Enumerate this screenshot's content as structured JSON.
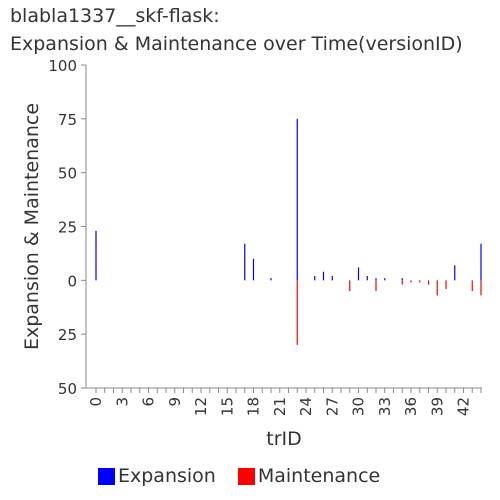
{
  "chart_data": {
    "type": "bar",
    "title_line1": "blabla1337__skf-flask:",
    "title_line2": "Expansion & Maintenance over Time(versionID)",
    "xlabel": "trID",
    "ylabel": "Expansion & Maintenance",
    "ylim": [
      -50,
      100
    ],
    "y_ticks": [
      {
        "value": 100,
        "label": "100"
      },
      {
        "value": 75,
        "label": "75"
      },
      {
        "value": 50,
        "label": "50"
      },
      {
        "value": 25,
        "label": "25"
      },
      {
        "value": 0,
        "label": "0"
      },
      {
        "value": -25,
        "label": "25"
      },
      {
        "value": -50,
        "label": "50"
      }
    ],
    "x_tick_labels": [
      "0",
      "3",
      "6",
      "9",
      "12",
      "15",
      "18",
      "21",
      "24",
      "27",
      "30",
      "33",
      "36",
      "39",
      "42"
    ],
    "x_tick_step": 3,
    "x": [
      0,
      1,
      2,
      3,
      4,
      5,
      6,
      7,
      8,
      9,
      10,
      11,
      12,
      13,
      14,
      15,
      16,
      17,
      18,
      19,
      20,
      21,
      22,
      23,
      24,
      25,
      26,
      27,
      28,
      29,
      30,
      31,
      32,
      33,
      34,
      35,
      36,
      37,
      38,
      39,
      40,
      41,
      42,
      43,
      44
    ],
    "series": [
      {
        "name": "Expansion",
        "color": "#0000ff",
        "values": [
          23,
          0,
          0,
          0,
          0,
          0,
          0,
          0,
          0,
          0,
          0,
          0,
          0,
          0,
          0,
          0,
          0,
          17,
          10,
          0,
          1,
          0,
          0,
          75,
          0,
          2,
          4,
          2,
          0,
          0,
          6,
          2,
          1,
          1,
          0,
          1,
          0,
          0,
          0,
          0,
          0,
          7,
          0,
          0,
          17
        ]
      },
      {
        "name": "Maintenance",
        "color": "#ff0000",
        "values": [
          0,
          0,
          0,
          0,
          0,
          0,
          0,
          0,
          0,
          0,
          0,
          0,
          0,
          0,
          0,
          0,
          0,
          0,
          0,
          0,
          0,
          0,
          0,
          -30,
          0,
          0,
          0,
          0,
          0,
          -5,
          0,
          0,
          -5,
          0,
          0,
          -2,
          -1,
          -1,
          -2,
          -7,
          -4,
          0,
          0,
          -5,
          -7
        ]
      }
    ],
    "legend_position": "bottom"
  }
}
